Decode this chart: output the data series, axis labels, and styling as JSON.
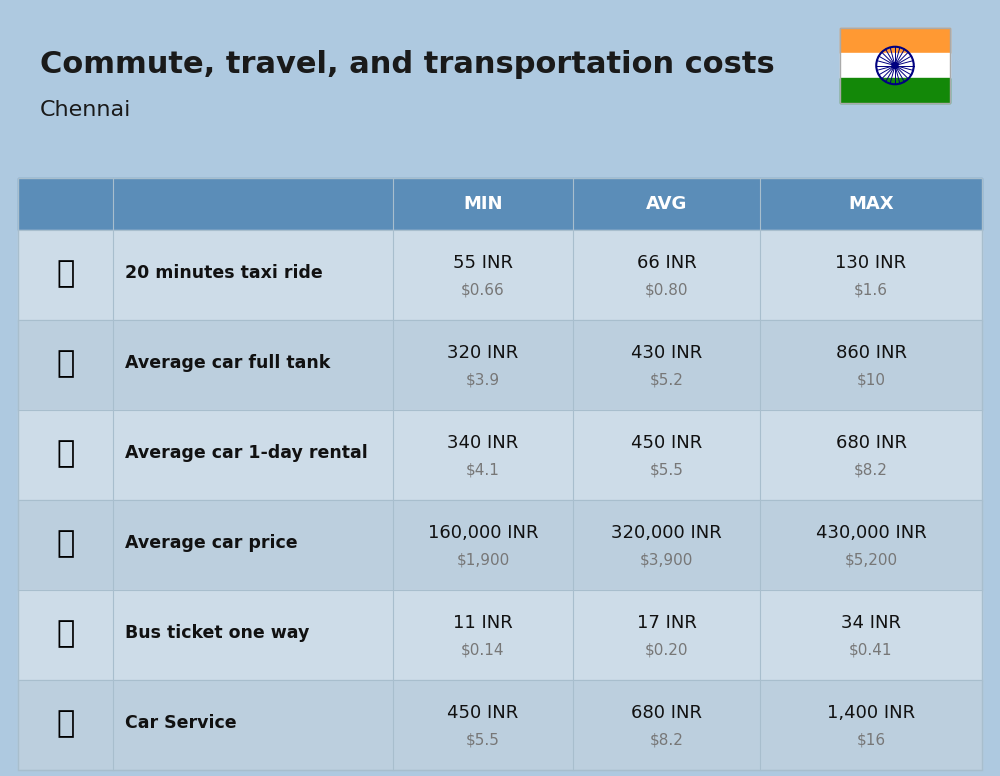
{
  "title": "Commute, travel, and transportation costs",
  "subtitle": "Chennai",
  "background_color": "#aec9e0",
  "header_bg_color": "#5b8db8",
  "header_text_color": "#ffffff",
  "row_bg_light": "#cddce8",
  "row_bg_dark": "#bccfde",
  "col_header_labels": [
    "MIN",
    "AVG",
    "MAX"
  ],
  "rows": [
    {
      "label": "20 minutes taxi ride",
      "min_inr": "55 INR",
      "min_usd": "$0.66",
      "avg_inr": "66 INR",
      "avg_usd": "$0.80",
      "max_inr": "130 INR",
      "max_usd": "$1.6"
    },
    {
      "label": "Average car full tank",
      "min_inr": "320 INR",
      "min_usd": "$3.9",
      "avg_inr": "430 INR",
      "avg_usd": "$5.2",
      "max_inr": "860 INR",
      "max_usd": "$10"
    },
    {
      "label": "Average car 1-day rental",
      "min_inr": "340 INR",
      "min_usd": "$4.1",
      "avg_inr": "450 INR",
      "avg_usd": "$5.5",
      "max_inr": "680 INR",
      "max_usd": "$8.2"
    },
    {
      "label": "Average car price",
      "min_inr": "160,000 INR",
      "min_usd": "$1,900",
      "avg_inr": "320,000 INR",
      "avg_usd": "$3,900",
      "max_inr": "430,000 INR",
      "max_usd": "$5,200"
    },
    {
      "label": "Bus ticket one way",
      "min_inr": "11 INR",
      "min_usd": "$0.14",
      "avg_inr": "17 INR",
      "avg_usd": "$0.20",
      "max_inr": "34 INR",
      "max_usd": "$0.41"
    },
    {
      "label": "Car Service",
      "min_inr": "450 INR",
      "min_usd": "$5.5",
      "avg_inr": "680 INR",
      "avg_usd": "$8.2",
      "max_inr": "1,400 INR",
      "max_usd": "$16"
    }
  ],
  "icon_emojis": [
    "🚕",
    "⛽️",
    "🚙",
    "🚗",
    "🚌",
    "🔧"
  ],
  "flag_colors": [
    "#FF9933",
    "#FFFFFF",
    "#138808"
  ],
  "flag_ashoka_color": "#000080",
  "title_fontsize": 22,
  "subtitle_fontsize": 16,
  "header_fontsize": 13,
  "label_fontsize": 12,
  "value_fontsize": 13,
  "usd_fontsize": 11
}
